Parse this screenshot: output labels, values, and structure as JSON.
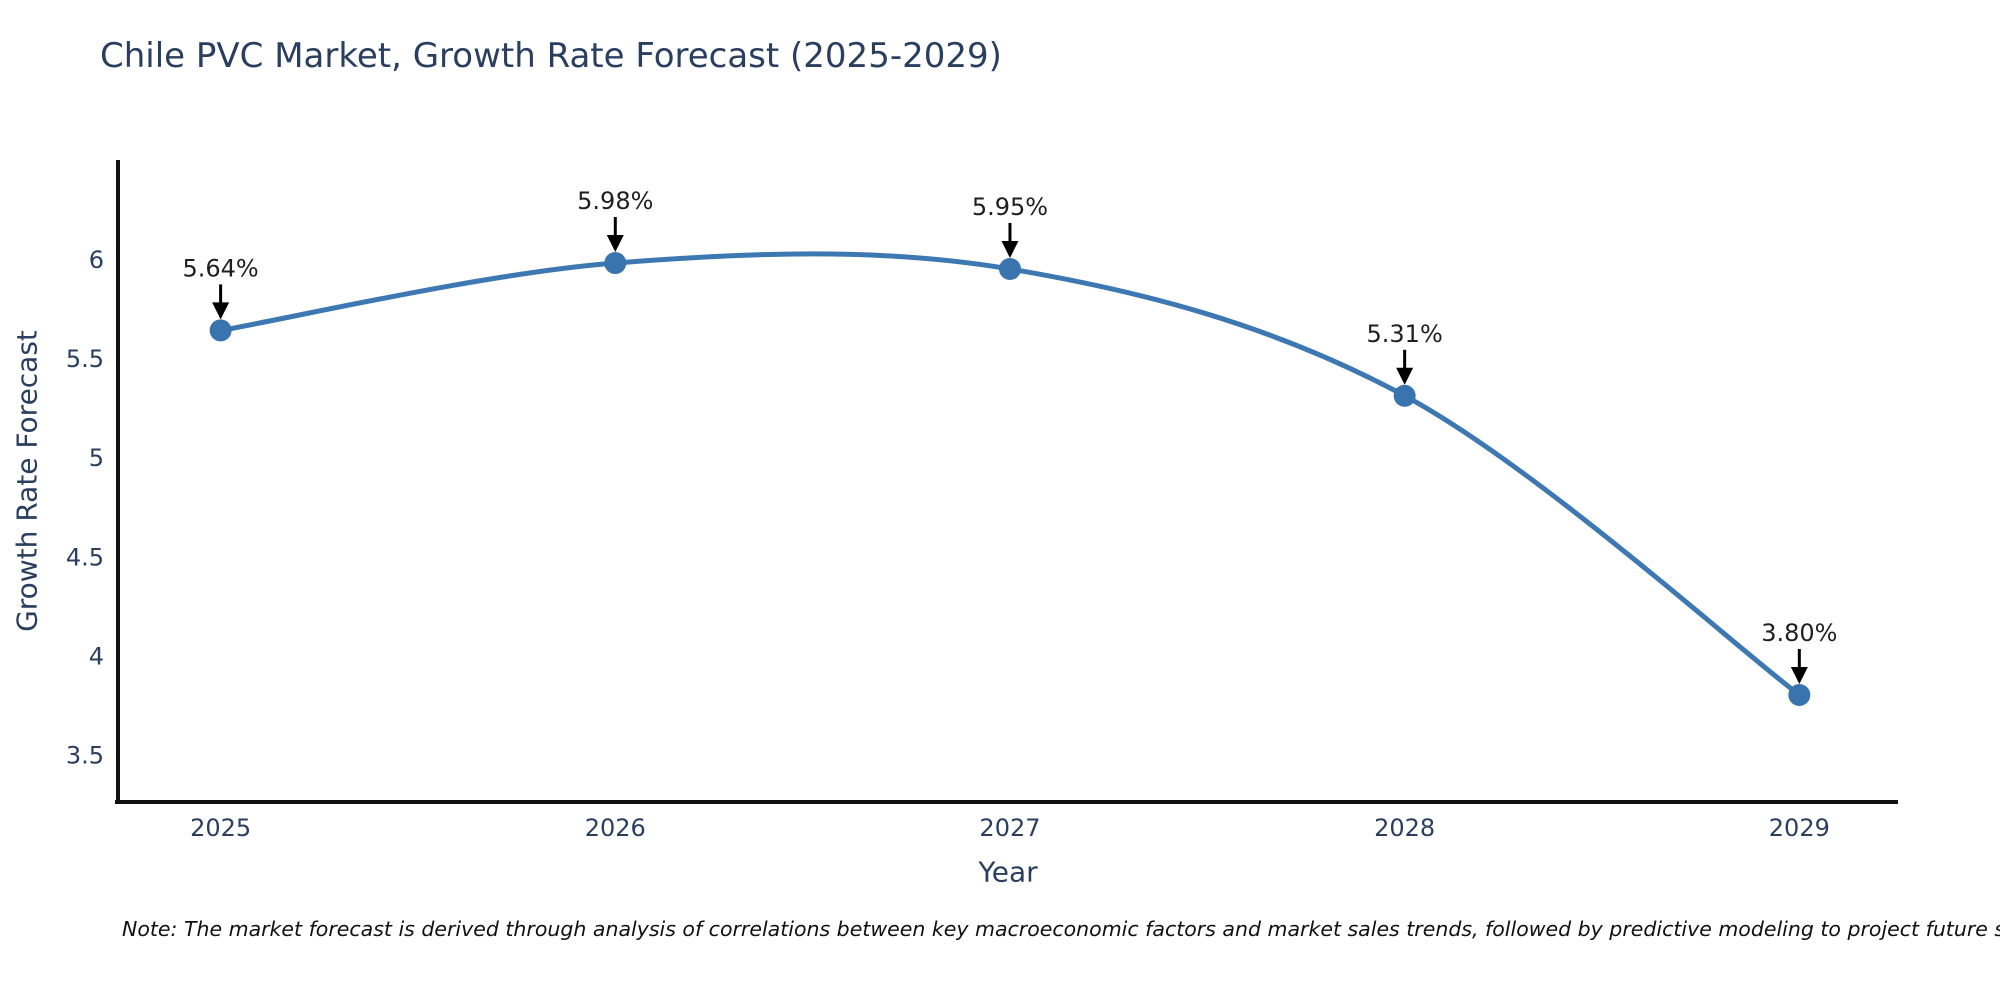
{
  "title": "Chile PVC Market, Growth Rate Forecast (2025-2029)",
  "note": "Note: The market forecast is derived through analysis of correlations between key macroeconomic factors and market sales trends, followed by predictive modeling to project future sales",
  "chart_data": {
    "type": "line",
    "title": "Chile PVC Market, Growth Rate Forecast (2025-2029)",
    "xlabel": "Year",
    "ylabel": "Growth Rate Forecast",
    "x": [
      2025,
      2026,
      2027,
      2028,
      2029
    ],
    "series": [
      {
        "name": "Growth Rate Forecast",
        "values": [
          5.64,
          5.98,
          5.95,
          5.31,
          3.8
        ],
        "point_labels": [
          "5.64%",
          "5.98%",
          "5.95%",
          "5.31%",
          "3.80%"
        ]
      }
    ],
    "xtick_labels": [
      "2025",
      "2026",
      "2027",
      "2028",
      "2029"
    ],
    "ytick_values": [
      6,
      5.5,
      5,
      4.5,
      4,
      3.5
    ],
    "ytick_labels": [
      "6",
      "5.5",
      "5",
      "4.5",
      "4",
      "3.5"
    ],
    "xlim": [
      2024.74,
      2029.25
    ],
    "ylim": [
      3.26,
      6.5
    ],
    "line_shape": "spline",
    "grid": false,
    "legend": "none",
    "colors": {
      "line": "#3d78b2",
      "marker": "#3a74ae",
      "axis_line": "#111111",
      "tick_text": "#2a3f5f",
      "annotation_text": "#1f1f1f",
      "annotation_arrow": "#000000",
      "background": "#ffffff"
    }
  }
}
